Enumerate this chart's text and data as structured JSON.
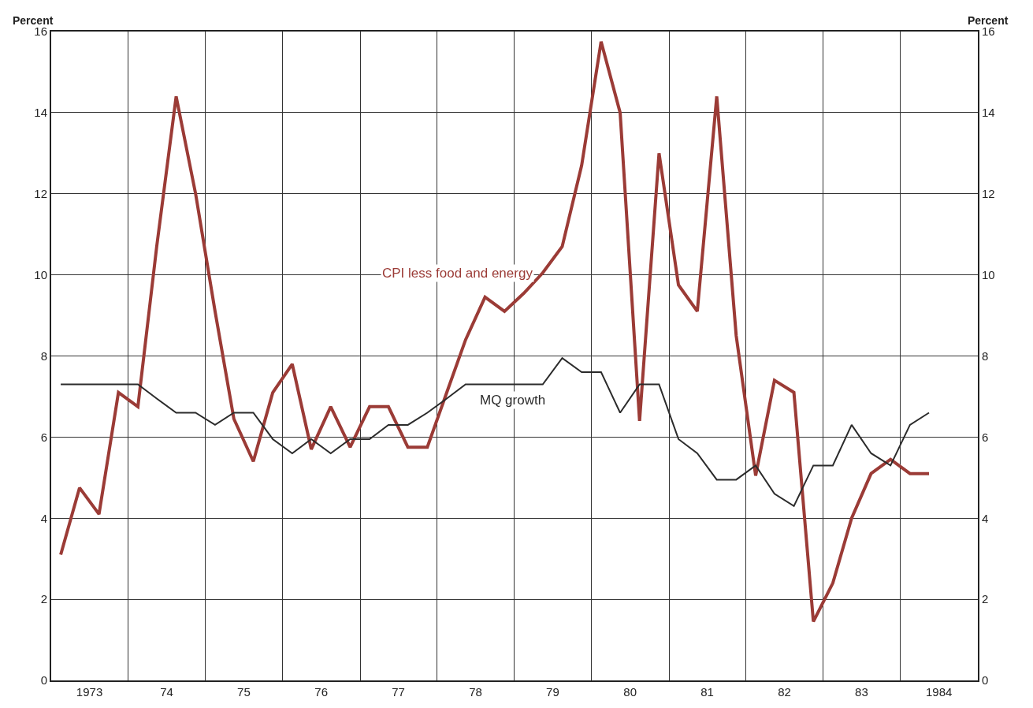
{
  "chart_data": {
    "type": "line",
    "ylabel": "Percent",
    "y2label": "Percent",
    "x": [
      "1973-02-15",
      "1973-05-15",
      "1973-08-15",
      "1973-11-15",
      "1974-02-15",
      "1974-05-15",
      "1974-08-15",
      "1974-11-15",
      "1975-02-15",
      "1975-05-15",
      "1975-08-15",
      "1975-11-15",
      "1976-02-15",
      "1976-05-15",
      "1976-08-15",
      "1976-11-15",
      "1977-02-15",
      "1977-05-15",
      "1977-08-15",
      "1977-11-15",
      "1978-02-15",
      "1978-05-15",
      "1978-08-15",
      "1978-11-15",
      "1979-02-15",
      "1979-05-15",
      "1979-08-15",
      "1979-11-15",
      "1980-02-15",
      "1980-05-15",
      "1980-08-15",
      "1980-11-15",
      "1981-02-15",
      "1981-05-15",
      "1981-08-15",
      "1981-11-15",
      "1982-02-15",
      "1982-05-15",
      "1982-08-15",
      "1982-11-15",
      "1983-02-15",
      "1983-05-15",
      "1983-08-15",
      "1983-11-15",
      "1984-02-15",
      "1984-05-15"
    ],
    "series": [
      {
        "name": "CPI less food and energy",
        "color": "#9b3b36",
        "values": [
          3.1,
          4.75,
          4.1,
          7.1,
          6.75,
          10.7,
          14.4,
          12.0,
          9.1,
          6.45,
          5.4,
          7.1,
          7.8,
          5.7,
          6.75,
          5.75,
          6.75,
          6.75,
          5.75,
          5.75,
          7.1,
          8.4,
          9.45,
          9.1,
          9.55,
          10.05,
          10.7,
          12.7,
          15.75,
          14.0,
          6.4,
          13.0,
          9.75,
          9.1,
          14.4,
          8.5,
          5.05,
          7.4,
          7.1,
          1.45,
          2.4,
          4.0,
          5.1,
          5.45,
          5.1,
          5.1
        ]
      },
      {
        "name": "MQ growth",
        "color": "#2b2b2b",
        "values": [
          7.3,
          7.3,
          7.3,
          7.3,
          7.3,
          6.95,
          6.6,
          6.6,
          6.3,
          6.6,
          6.6,
          5.95,
          5.6,
          5.95,
          5.6,
          5.95,
          5.95,
          6.3,
          6.3,
          6.6,
          6.95,
          7.3,
          7.3,
          7.3,
          7.3,
          7.3,
          7.95,
          7.6,
          7.6,
          6.6,
          7.3,
          7.3,
          5.95,
          5.6,
          4.95,
          4.95,
          5.3,
          4.6,
          4.3,
          5.3,
          5.3,
          6.3,
          5.6,
          5.3,
          6.3,
          6.6
        ]
      }
    ],
    "xlim": [
      "1973-01-01",
      "1985-01-01"
    ],
    "xticks": [
      {
        "value": "1973-07-01",
        "label": "1973"
      },
      {
        "value": "1974-01-01",
        "label": null
      },
      {
        "value": "1974-07-01",
        "label": "74"
      },
      {
        "value": "1975-01-01",
        "label": null
      },
      {
        "value": "1975-07-01",
        "label": "75"
      },
      {
        "value": "1976-01-01",
        "label": null
      },
      {
        "value": "1976-07-01",
        "label": "76"
      },
      {
        "value": "1977-01-01",
        "label": null
      },
      {
        "value": "1977-07-01",
        "label": "77"
      },
      {
        "value": "1978-01-01",
        "label": null
      },
      {
        "value": "1978-07-01",
        "label": "78"
      },
      {
        "value": "1979-01-01",
        "label": null
      },
      {
        "value": "1979-07-01",
        "label": "79"
      },
      {
        "value": "1980-01-01",
        "label": null
      },
      {
        "value": "1980-07-01",
        "label": "80"
      },
      {
        "value": "1981-01-01",
        "label": null
      },
      {
        "value": "1981-07-01",
        "label": "81"
      },
      {
        "value": "1982-01-01",
        "label": null
      },
      {
        "value": "1982-07-01",
        "label": "82"
      },
      {
        "value": "1983-01-01",
        "label": null
      },
      {
        "value": "1983-07-01",
        "label": "83"
      },
      {
        "value": "1984-01-01",
        "label": null
      },
      {
        "value": "1984-07-01",
        "label": "1984"
      }
    ],
    "ylim": [
      0,
      16
    ],
    "yticks": [
      0,
      2,
      4,
      6,
      8,
      10,
      12,
      14,
      16
    ],
    "y2lim": [
      0,
      16
    ],
    "y2ticks": [
      0,
      2,
      4,
      6,
      8,
      10,
      12,
      14,
      16
    ],
    "grid": true,
    "legend": false,
    "marker": "none",
    "line_style": "solid"
  }
}
